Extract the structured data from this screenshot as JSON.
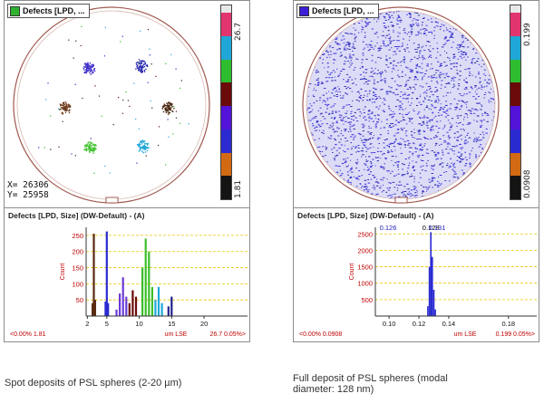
{
  "left_panel": {
    "wafer_title": "Defects [LPD, ...",
    "wafer_title_color": "#2fb22f",
    "scale_max": "26.7",
    "scale_min": "1.81",
    "coord_x": "X=   26306",
    "coord_y": "Y=   25958",
    "hist_title": "Defects [LPD, Size] (DW-Default) - (A)",
    "footer_left": "<0.00% 1.81",
    "footer_unit": "um LSE",
    "footer_right": "26.7 0.05%>",
    "caption": "Spot deposits of PSL spheres (2-20 µm)"
  },
  "right_panel": {
    "wafer_title": "Defects [LPD, ...",
    "wafer_title_color": "#3a1fd6",
    "scale_max": "0.199",
    "scale_min": "0.0908",
    "hist_title": "Defects [LPD, Size] (DW-Default) - (A)",
    "peak_labels": [
      "0.126",
      "0.128",
      "0.131"
    ],
    "footer_left": "<0.00% 0.0908",
    "footer_unit": "um LSE",
    "footer_right": "0.199 0.05%>",
    "caption_line1": "Full deposit of PSL spheres (modal",
    "caption_line2": "diameter: 128 nm)"
  },
  "scale_colors": [
    "#e8e8e8",
    "#e2356f",
    "#1fa7d8",
    "#2ebd2e",
    "#6a0a0a",
    "#5312d8",
    "#2a2ad0",
    "#d26a14",
    "#141414"
  ],
  "chart_data": [
    {
      "type": "bar",
      "title": "Defects [LPD, Size] (DW-Default) - (A)",
      "xlabel": "um LSE",
      "ylabel": "Count",
      "x_ticks": [
        "2",
        "5",
        "10",
        "15",
        "20"
      ],
      "y_ticks": [
        "50",
        "100",
        "150",
        "200",
        "250"
      ],
      "ylim": [
        0,
        275
      ],
      "xlim": [
        1.81,
        26.7
      ],
      "series": [
        {
          "name": "brown",
          "x": [
            2.8,
            3.0,
            3.2
          ],
          "values": [
            40,
            255,
            50
          ]
        },
        {
          "name": "blue",
          "x": [
            4.8,
            5.0,
            5.2
          ],
          "values": [
            45,
            262,
            40
          ]
        },
        {
          "name": "violet",
          "x": [
            6.5,
            7.0,
            7.5,
            8.0
          ],
          "values": [
            20,
            70,
            120,
            60
          ]
        },
        {
          "name": "maroon",
          "x": [
            8.5,
            9.0,
            9.5
          ],
          "values": [
            40,
            80,
            60
          ]
        },
        {
          "name": "green",
          "x": [
            10.5,
            11.0,
            11.5,
            12.0
          ],
          "values": [
            150,
            240,
            200,
            90
          ]
        },
        {
          "name": "cyan",
          "x": [
            12.5,
            13.0,
            13.5
          ],
          "values": [
            50,
            90,
            40
          ]
        },
        {
          "name": "navy",
          "x": [
            14.5,
            15.0
          ],
          "values": [
            30,
            60
          ]
        }
      ]
    },
    {
      "type": "bar",
      "title": "Defects [LPD, Size] (DW-Default) - (A)",
      "xlabel": "um LSE",
      "ylabel": "Count",
      "x_ticks": [
        "0.10",
        "0.12",
        "0.14",
        "0.18"
      ],
      "y_ticks": [
        "500",
        "1000",
        "1500",
        "2000",
        "2500"
      ],
      "ylim": [
        0,
        2700
      ],
      "xlim": [
        0.0908,
        0.199
      ],
      "peak_labels": [
        "0.126",
        "0.128",
        "0.131"
      ],
      "series": [
        {
          "name": "blue",
          "x": [
            0.126,
            0.127,
            0.128,
            0.129,
            0.13,
            0.131
          ],
          "values": [
            300,
            1500,
            2550,
            1800,
            800,
            200
          ]
        }
      ]
    }
  ]
}
